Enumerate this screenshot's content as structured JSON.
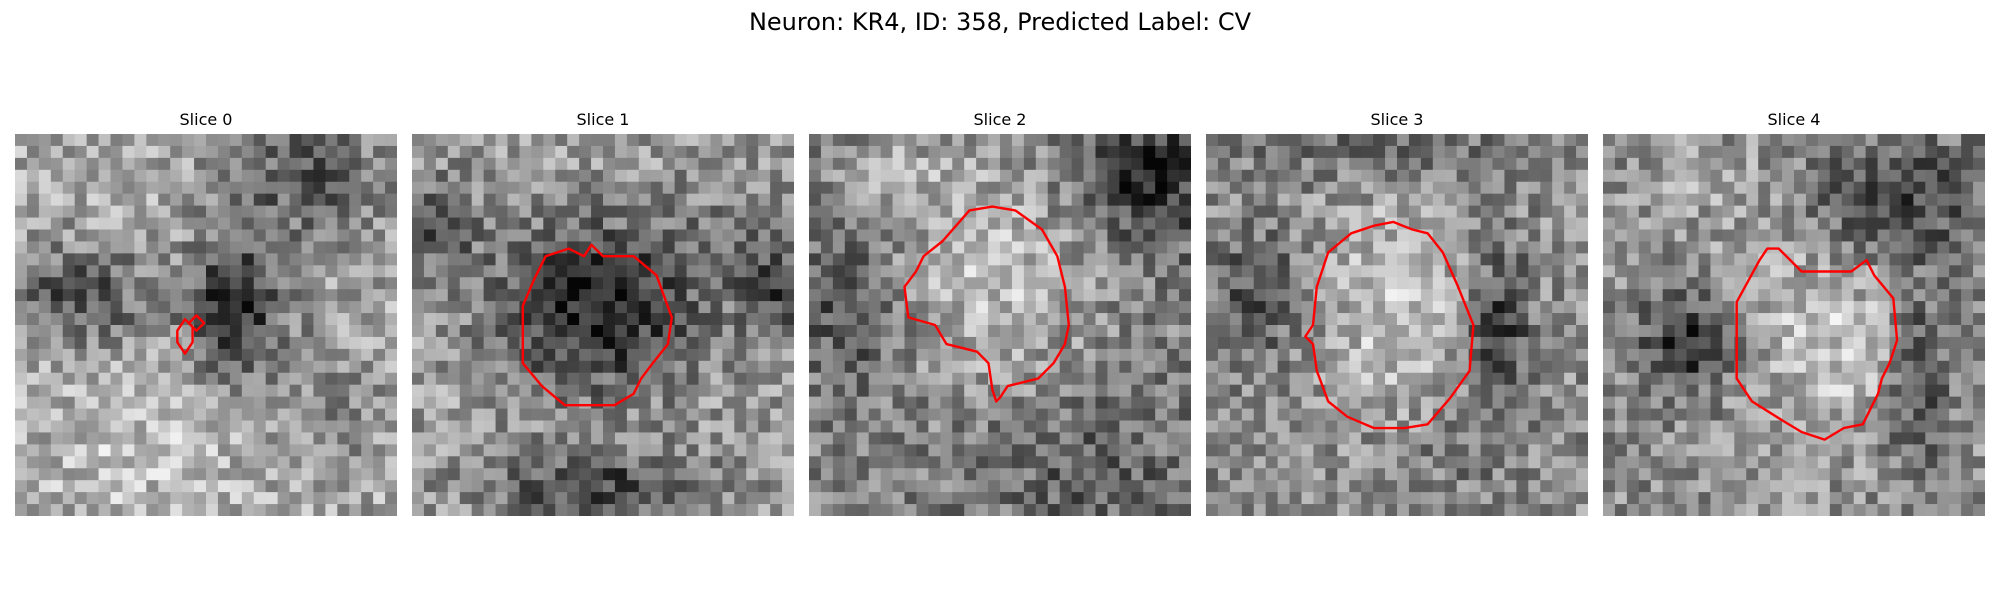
{
  "figure": {
    "title": "Neuron: KR4, ID: 358, Predicted Label: CV"
  },
  "contour_color": "#ff0000",
  "colormap": "gray",
  "panels": [
    {
      "title": "Slice 0",
      "overlay": "two small red contours left of a dark blob"
    },
    {
      "title": "Slice 1",
      "overlay": "red contour around a dark cell body"
    },
    {
      "title": "Slice 2",
      "overlay": "red contour around a bright irregular cell"
    },
    {
      "title": "Slice 3",
      "overlay": "red contour around a bright oval cell"
    },
    {
      "title": "Slice 4",
      "overlay": "red contour around a bright oval cell"
    }
  ]
}
